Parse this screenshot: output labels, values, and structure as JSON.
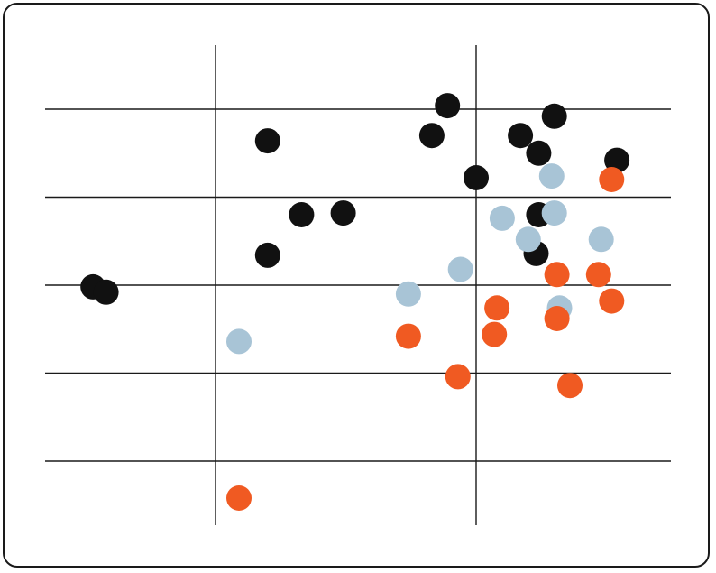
{
  "chart_data": {
    "type": "scatter",
    "title": "",
    "xlabel": "",
    "ylabel": "",
    "xlim": [
      -0.65,
      1.75
    ],
    "ylim": [
      -0.72,
      2.0
    ],
    "grid": {
      "horizontal": true,
      "vertical": true
    },
    "xgrid": [
      0,
      1
    ],
    "ygrid": [
      1.5,
      1.0,
      0.5,
      0.0,
      -0.5
    ],
    "legend": "none",
    "series": [
      {
        "color": "#111111",
        "points": [
          [
            -0.47,
            0.49
          ],
          [
            -0.42,
            0.46
          ],
          [
            0.2,
            1.32
          ],
          [
            0.2,
            0.67
          ],
          [
            0.33,
            0.9
          ],
          [
            0.49,
            0.91
          ],
          [
            0.89,
            1.52
          ],
          [
            0.83,
            1.35
          ],
          [
            1.0,
            1.11
          ],
          [
            1.17,
            1.35
          ],
          [
            1.3,
            1.46
          ],
          [
            1.24,
            1.25
          ],
          [
            1.54,
            1.21
          ],
          [
            1.24,
            0.9
          ],
          [
            1.23,
            0.68
          ]
        ]
      },
      {
        "color": "#a8c4d6",
        "points": [
          [
            0.09,
            0.18
          ],
          [
            0.74,
            0.45
          ],
          [
            0.94,
            0.59
          ],
          [
            1.1,
            0.88
          ],
          [
            1.2,
            0.76
          ],
          [
            1.3,
            0.91
          ],
          [
            1.29,
            1.12
          ],
          [
            1.48,
            0.76
          ],
          [
            1.32,
            0.37
          ]
        ]
      },
      {
        "color": "#f05a22",
        "points": [
          [
            0.09,
            -0.71
          ],
          [
            0.74,
            0.21
          ],
          [
            0.93,
            -0.02
          ],
          [
            1.08,
            0.37
          ],
          [
            1.07,
            0.22
          ],
          [
            1.31,
            0.31
          ],
          [
            1.31,
            0.56
          ],
          [
            1.47,
            0.56
          ],
          [
            1.52,
            0.41
          ],
          [
            1.52,
            1.1
          ],
          [
            1.36,
            -0.07
          ]
        ]
      }
    ]
  }
}
